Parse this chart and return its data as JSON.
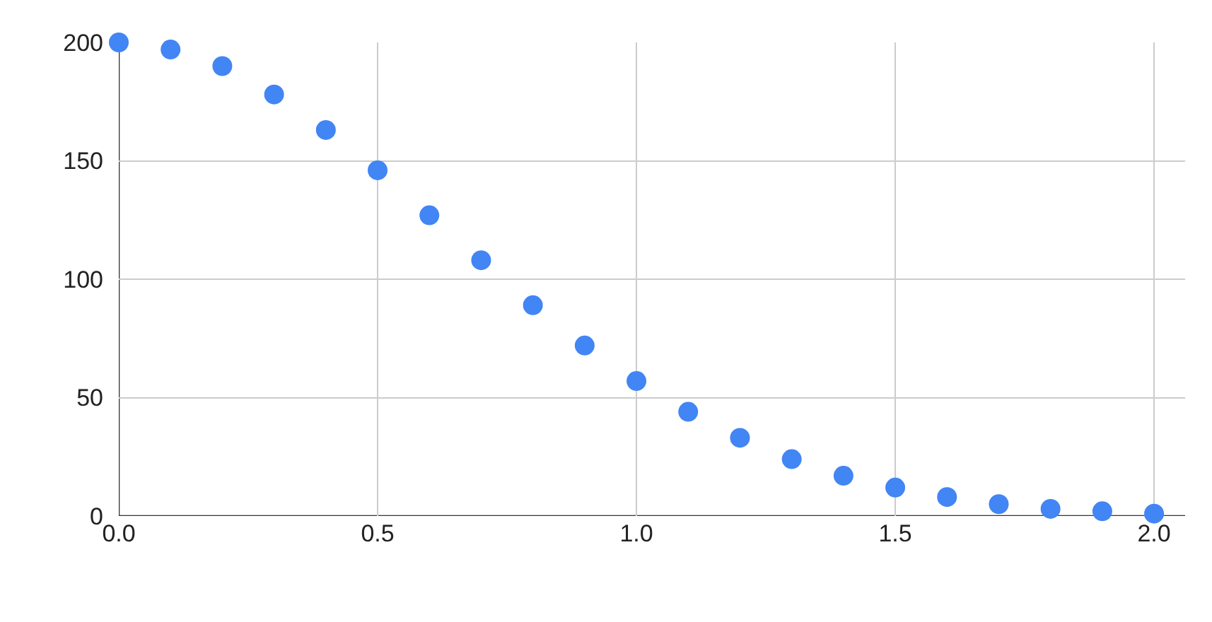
{
  "chart_data": {
    "type": "scatter",
    "x": [
      0,
      0.1,
      0.2,
      0.3,
      0.4,
      0.5,
      0.6,
      0.7,
      0.8,
      0.9,
      1.0,
      1.1,
      1.2,
      1.3,
      1.4,
      1.5,
      1.6,
      1.7,
      1.8,
      1.9,
      2.0
    ],
    "series": [
      {
        "color": "#4285f4",
        "values": [
          200,
          197,
          190,
          178,
          163,
          146,
          127,
          108,
          89,
          72,
          57,
          44,
          33,
          24,
          17,
          12,
          8,
          5,
          3,
          2,
          1
        ]
      }
    ],
    "xlim": [
      0,
      2.06
    ],
    "xticks": [
      {
        "value": 0,
        "label": "0.0"
      },
      {
        "value": 0.5,
        "label": "0.5"
      },
      {
        "value": 1,
        "label": "1.0"
      },
      {
        "value": 1.5,
        "label": "1.5"
      },
      {
        "value": 2,
        "label": "2.0"
      }
    ],
    "ylim": [
      0,
      200
    ],
    "yticks": [
      0,
      50,
      100,
      150,
      200
    ],
    "grid": true,
    "marker": "circle",
    "legend": false
  }
}
